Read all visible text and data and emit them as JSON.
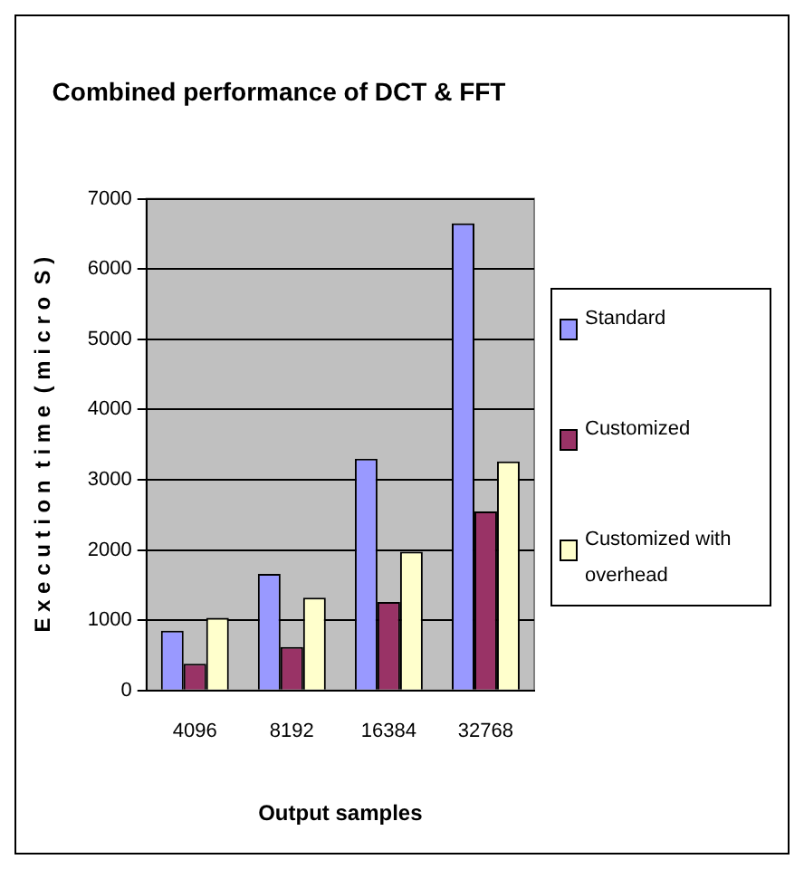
{
  "chart_data": {
    "type": "bar",
    "title": "Combined performance of DCT & FFT",
    "xlabel": "Output samples",
    "ylabel": "E x e c u t i o n  t i m e  ( m i c r o  S )",
    "categories": [
      "4096",
      "8192",
      "16384",
      "32768"
    ],
    "series": [
      {
        "name": "Standard",
        "color": "#9999ff",
        "values": [
          850,
          1660,
          3300,
          6650
        ]
      },
      {
        "name": "Customized",
        "color": "#993366",
        "values": [
          380,
          620,
          1260,
          2550
        ]
      },
      {
        "name": "Customized with overhead",
        "color": "#ffffcc",
        "values": [
          1035,
          1320,
          1975,
          3260
        ]
      }
    ],
    "ylim": [
      0,
      7000
    ],
    "yticks": [
      0,
      1000,
      2000,
      3000,
      4000,
      5000,
      6000,
      7000
    ],
    "grid": "y",
    "legend": "right"
  }
}
